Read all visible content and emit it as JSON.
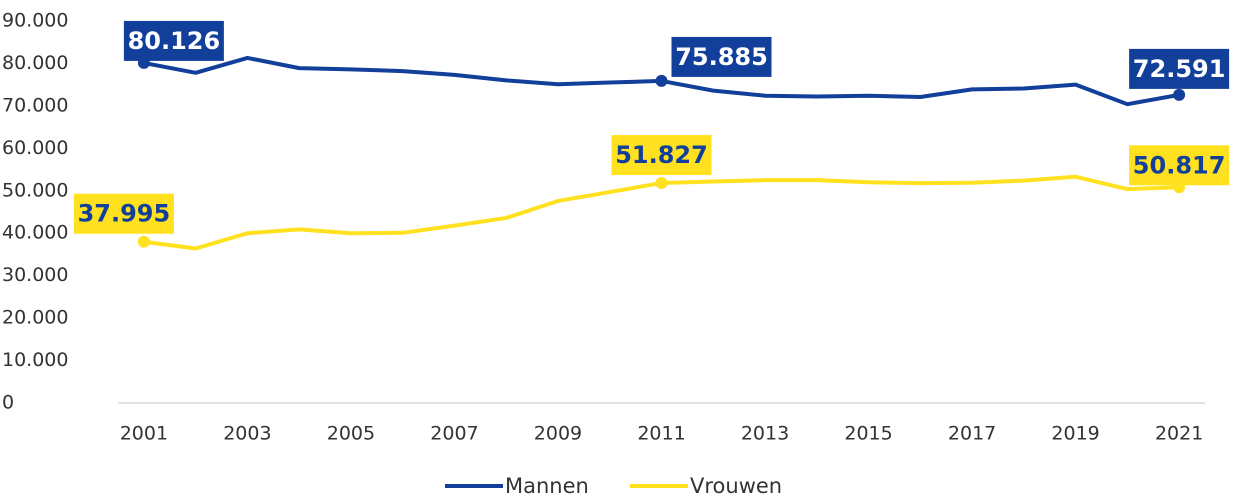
{
  "chart_data": {
    "type": "line",
    "categories": [
      "2001",
      null,
      "2003",
      null,
      "2005",
      null,
      "2007",
      null,
      "2009",
      null,
      "2011",
      null,
      "2013",
      null,
      "2015",
      null,
      "2017",
      null,
      "2019",
      null,
      "2021"
    ],
    "series": [
      {
        "name": "Mannen",
        "color": "#123f9a",
        "values": [
          80126,
          77800,
          81300,
          78900,
          78600,
          78200,
          77300,
          76000,
          75100,
          75500,
          75885,
          73600,
          72400,
          72200,
          72400,
          72100,
          73900,
          74100,
          75000,
          70400,
          72591
        ],
        "value_labels": [
          "80.126",
          null,
          null,
          null,
          null,
          null,
          null,
          null,
          null,
          null,
          "75.885",
          null,
          null,
          null,
          null,
          null,
          null,
          null,
          null,
          null,
          "72.591"
        ]
      },
      {
        "name": "Vrouwen",
        "color": "#ffe11f",
        "values": [
          37995,
          36400,
          40000,
          40900,
          40000,
          40100,
          41800,
          43600,
          47600,
          49700,
          51827,
          52200,
          52500,
          52500,
          52000,
          51800,
          51900,
          52400,
          53300,
          50400,
          50817
        ],
        "value_labels": [
          "37.995",
          null,
          null,
          null,
          null,
          null,
          null,
          null,
          null,
          null,
          "51.827",
          null,
          null,
          null,
          null,
          null,
          null,
          null,
          null,
          null,
          "50.817"
        ]
      }
    ],
    "ylim": [
      0,
      90000
    ],
    "yticks": [
      0,
      {
        "value": 10000,
        "label": "10.000"
      },
      {
        "value": 20000,
        "label": "20.000"
      },
      {
        "value": 30000,
        "label": "30.000"
      },
      {
        "value": 40000,
        "label": "40.000"
      },
      {
        "value": 50000,
        "label": "50.000"
      },
      {
        "value": 60000,
        "label": "60.000"
      },
      {
        "value": 70000,
        "label": "70.000"
      },
      {
        "value": 80000,
        "label": "80.000"
      },
      {
        "value": 90000,
        "label": "90.000"
      }
    ],
    "legend": "bottom"
  }
}
